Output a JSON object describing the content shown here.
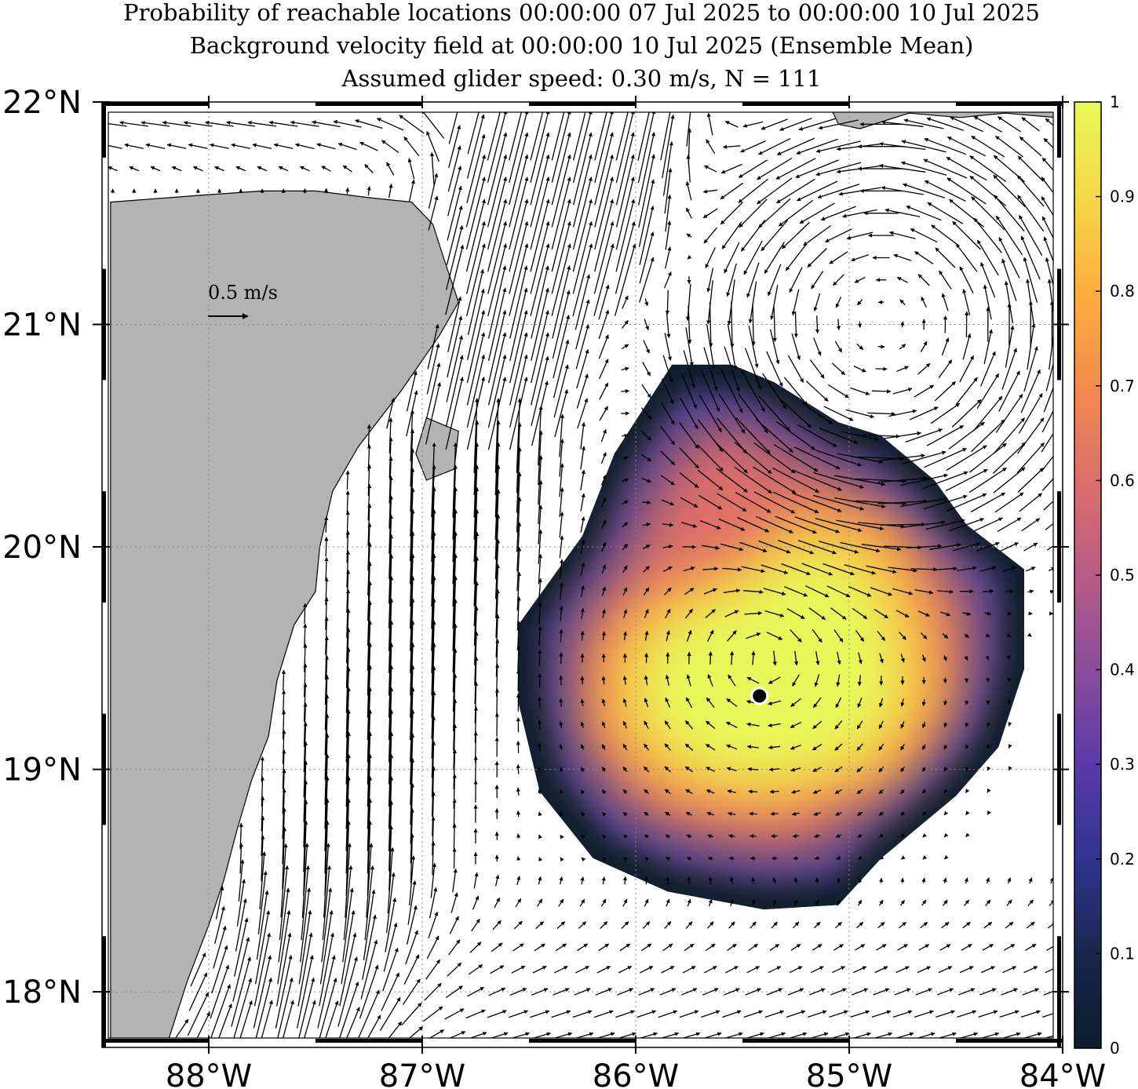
{
  "title": {
    "line1": "Probability of reachable locations 00:00:00 07 Jul 2025 to 00:00:00 10 Jul 2025",
    "line2": "Background velocity field at 00:00:00 10 Jul 2025 (Ensemble Mean)",
    "line3": "Assumed glider speed: 0.30 m/s, N = 111"
  },
  "axes": {
    "lon_ticks": [
      -88,
      -87,
      -86,
      -85,
      -84
    ],
    "lon_labels": [
      "88°W",
      "87°W",
      "86°W",
      "85°W",
      "84°W"
    ],
    "lat_ticks": [
      22,
      21,
      20,
      19,
      18
    ],
    "lat_labels": [
      "22°N",
      "21°N",
      "20°N",
      "19°N",
      "18°N"
    ],
    "lon_range": [
      -88.5,
      -84.0
    ],
    "lat_range": [
      17.75,
      22.0
    ],
    "grid": "dotted"
  },
  "scale_arrow": {
    "label": "0.5 m/s",
    "speed": 0.5
  },
  "colorbar": {
    "ticks": [
      "0",
      "0.1",
      "0.2",
      "0.3",
      "0.4",
      "0.5",
      "0.6",
      "0.7",
      "0.8",
      "0.9",
      "1"
    ],
    "range": [
      0,
      1
    ],
    "colormap": [
      "#0b1d2e",
      "#16284d",
      "#2f3590",
      "#5b3aa8",
      "#8a4d9c",
      "#b85b86",
      "#dd6e6a",
      "#f48a4e",
      "#fcae3c",
      "#f5d848",
      "#e8f85a"
    ]
  },
  "chart_data": {
    "type": "heatmap",
    "variable": "probability of reachable locations",
    "start_point": {
      "lon": -85.42,
      "lat": 19.33
    },
    "region_outline": [
      [
        -85.83,
        20.82
      ],
      [
        -85.55,
        20.82
      ],
      [
        -85.35,
        20.74
      ],
      [
        -85.05,
        20.56
      ],
      [
        -84.85,
        20.5
      ],
      [
        -84.6,
        20.3
      ],
      [
        -84.45,
        20.1
      ],
      [
        -84.18,
        19.9
      ],
      [
        -84.18,
        19.45
      ],
      [
        -84.3,
        19.1
      ],
      [
        -84.5,
        18.88
      ],
      [
        -84.85,
        18.6
      ],
      [
        -85.05,
        18.39
      ],
      [
        -85.4,
        18.37
      ],
      [
        -85.85,
        18.45
      ],
      [
        -86.2,
        18.6
      ],
      [
        -86.45,
        18.9
      ],
      [
        -86.55,
        19.3
      ],
      [
        -86.55,
        19.65
      ],
      [
        -86.25,
        20.05
      ],
      [
        -86.1,
        20.42
      ]
    ],
    "high_probability_core": [
      [
        -85.2,
        20.2
      ],
      [
        -84.8,
        20.1
      ],
      [
        -84.6,
        19.7
      ],
      [
        -84.55,
        19.3
      ],
      [
        -84.8,
        18.95
      ],
      [
        -85.4,
        18.8
      ],
      [
        -85.9,
        18.9
      ],
      [
        -86.2,
        19.2
      ],
      [
        -86.15,
        19.6
      ],
      [
        -85.9,
        19.8
      ],
      [
        -85.5,
        19.95
      ]
    ],
    "land_polygons": [
      {
        "name": "Yucatan",
        "coords": [
          [
            -88.46,
            21.55
          ],
          [
            -88.05,
            21.58
          ],
          [
            -87.75,
            21.6
          ],
          [
            -87.5,
            21.6
          ],
          [
            -87.25,
            21.57
          ],
          [
            -87.05,
            21.55
          ],
          [
            -86.95,
            21.45
          ],
          [
            -86.9,
            21.3
          ],
          [
            -86.83,
            21.1
          ],
          [
            -86.92,
            20.95
          ],
          [
            -87.1,
            20.7
          ],
          [
            -87.3,
            20.45
          ],
          [
            -87.42,
            20.25
          ],
          [
            -87.48,
            20.0
          ],
          [
            -87.5,
            19.8
          ],
          [
            -87.6,
            19.65
          ],
          [
            -87.68,
            19.4
          ],
          [
            -87.72,
            19.15
          ],
          [
            -87.8,
            18.95
          ],
          [
            -87.87,
            18.72
          ],
          [
            -87.93,
            18.5
          ],
          [
            -88.0,
            18.3
          ],
          [
            -88.1,
            18.05
          ],
          [
            -88.2,
            17.75
          ],
          [
            -88.46,
            17.75
          ]
        ]
      },
      {
        "name": "Cozumel",
        "coords": [
          [
            -86.98,
            20.58
          ],
          [
            -86.83,
            20.52
          ],
          [
            -86.85,
            20.35
          ],
          [
            -86.98,
            20.3
          ],
          [
            -87.03,
            20.42
          ]
        ]
      },
      {
        "name": "Cuba",
        "coords": [
          [
            -84.95,
            21.88
          ],
          [
            -84.72,
            21.95
          ],
          [
            -84.48,
            21.93
          ],
          [
            -84.27,
            21.95
          ],
          [
            -84.03,
            21.93
          ],
          [
            -84.03,
            22.0
          ],
          [
            -85.1,
            22.0
          ],
          [
            -85.05,
            21.9
          ]
        ]
      }
    ],
    "vector_field": {
      "description": "ensemble mean background velocity field",
      "units": "m/s"
    }
  }
}
